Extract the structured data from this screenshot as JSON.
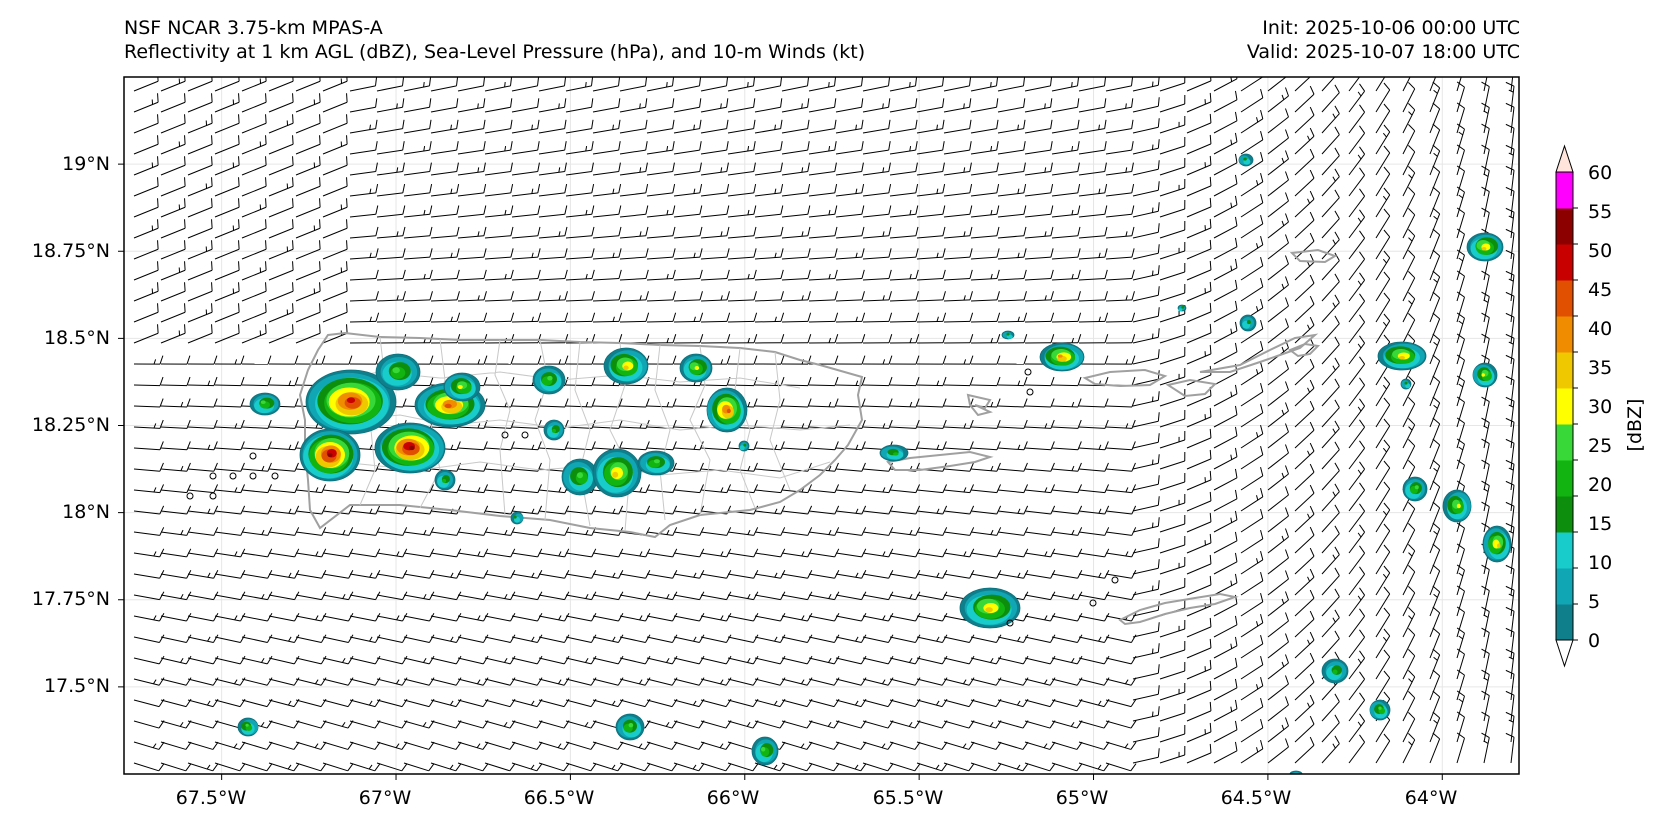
{
  "header": {
    "model": "NSF NCAR 3.75-km MPAS-A",
    "fields": "Reflectivity at 1 km AGL (dBZ), Sea-Level Pressure (hPa), and 10-m Winds (kt)",
    "init": "Init: 2025-10-06 00:00 UTC",
    "valid": "Valid: 2025-10-07 18:00 UTC"
  },
  "axes": {
    "lat_labels": [
      "19°N",
      "18.75°N",
      "18.5°N",
      "18.25°N",
      "18°N",
      "17.75°N",
      "17.5°N"
    ],
    "lat_values": [
      19.0,
      18.75,
      18.5,
      18.25,
      18.0,
      17.75,
      17.5
    ],
    "lon_labels": [
      "67.5°W",
      "67°W",
      "66.5°W",
      "66°W",
      "65.5°W",
      "65°W",
      "64.5°W",
      "64°W"
    ],
    "lon_values": [
      -67.5,
      -67.0,
      -66.5,
      -66.0,
      -65.5,
      -65.0,
      -64.5,
      -64.0
    ],
    "lon_range": [
      -67.78,
      -63.78
    ],
    "lat_range": [
      17.25,
      19.25
    ]
  },
  "colorbar": {
    "label": "[dBZ]",
    "ticks": [
      "0",
      "5",
      "10",
      "15",
      "20",
      "25",
      "30",
      "35",
      "40",
      "45",
      "50",
      "55",
      "60"
    ],
    "colors": [
      "#0f7f8c",
      "#10a6b3",
      "#18cccc",
      "#0d8f0d",
      "#11b411",
      "#38d838",
      "#ffff00",
      "#f0c800",
      "#f08c00",
      "#e05000",
      "#c80000",
      "#8c0000",
      "#ff00ff",
      "#ffe4dc"
    ]
  },
  "colors": {
    "coast": "#a0a0a0",
    "municipal": "#c0c0c0",
    "barb": "#000000"
  }
}
